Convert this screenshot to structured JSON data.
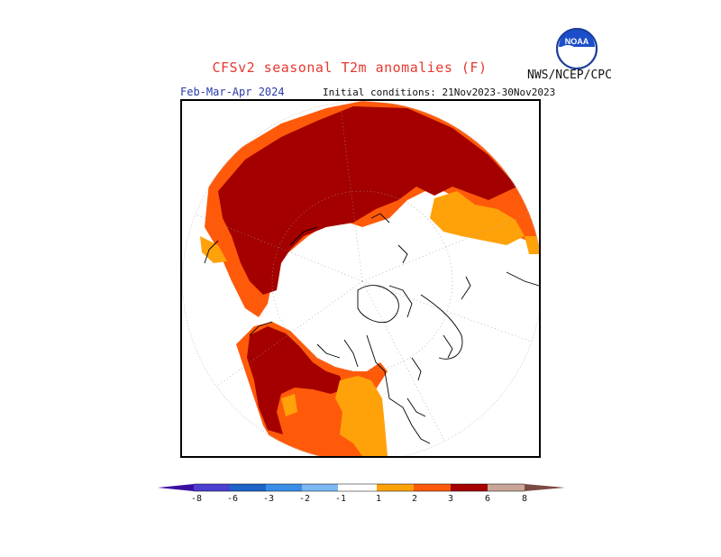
{
  "header": {
    "title": "CFSv2 seasonal T2m anomalies (F)",
    "agency": "NWS/NCEP/CPC",
    "logo_text": "NOAA",
    "period": "Feb-Mar-Apr 2024",
    "initial_conditions": "Initial conditions: 21Nov2023-30Nov2023"
  },
  "legend": {
    "labels": [
      "-8",
      "-6",
      "-3",
      "-2",
      "-1",
      "1",
      "2",
      "3",
      "6",
      "8"
    ],
    "colors": {
      "below_-8": "#3a0fa0",
      "-8_to_-6": "#4a3fd0",
      "-6_to_-3": "#1e63c8",
      "-3_to_-2": "#3a8ee8",
      "-2_to_-1": "#7bb8f4",
      "-1_to_1": "#ffffff",
      "1_to_2": "#ffa20a",
      "2_to_3": "#ff5a0a",
      "3_to_6": "#a50000",
      "6_to_8": "#c8a596",
      "above_8": "#7a4a42"
    }
  },
  "map": {
    "projection": "north polar stereographic",
    "dominant_anomaly": "warm",
    "region_colors": {
      "strong_warm": "#a50000",
      "warm": "#ff5a0a",
      "mild_warm": "#ffa20a"
    }
  }
}
